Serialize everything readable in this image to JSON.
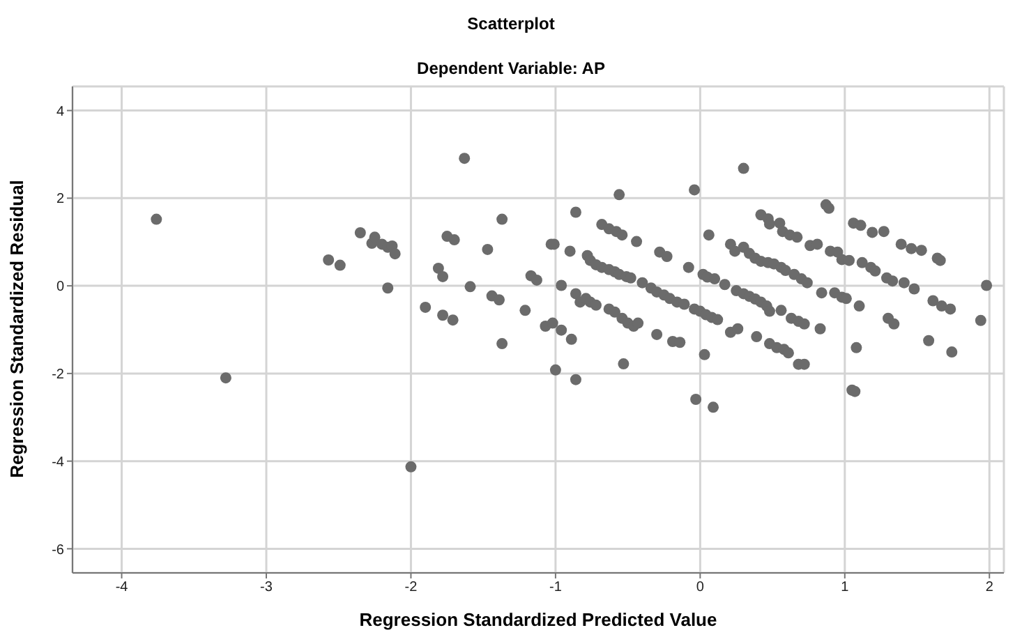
{
  "chart_data": {
    "type": "scatter",
    "title": "Scatterplot",
    "subtitle": "Dependent Variable: AP",
    "xlabel": "Regression Standardized Predicted Value",
    "ylabel": "Regression Standardized Residual",
    "xlim": [
      -4.34,
      2.1
    ],
    "ylim": [
      -6.55,
      4.55
    ],
    "xticks": [
      -4,
      -3,
      -2,
      -1,
      0,
      1,
      2
    ],
    "yticks": [
      -6,
      -4,
      -2,
      0,
      2,
      4
    ],
    "grid": true,
    "marker": "circle",
    "series": [
      {
        "color": "#6b6b6b",
        "x": [
          -3.76,
          -3.28,
          -2.57,
          -2.49,
          -2.35,
          -2.27,
          -2.25,
          -2.2,
          -2.16,
          -2.13,
          -2.11,
          -2.16,
          -2.0,
          -1.63,
          -1.75,
          -1.7,
          -1.81,
          -1.78,
          -1.9,
          -1.78,
          -1.71,
          -1.59,
          -1.47,
          -1.37,
          -1.44,
          -1.39,
          -1.37,
          -1.21,
          -1.17,
          -1.13,
          -1.03,
          -1.01,
          -1.07,
          -1.02,
          -0.96,
          -0.89,
          -0.96,
          -1.0,
          -0.86,
          -0.86,
          -0.9,
          -0.86,
          -0.83,
          -0.79,
          -0.76,
          -0.72,
          -0.78,
          -0.76,
          -0.72,
          -0.68,
          -0.63,
          -0.59,
          -0.56,
          -0.51,
          -0.48,
          -0.68,
          -0.63,
          -0.58,
          -0.54,
          -0.44,
          -0.56,
          -0.63,
          -0.59,
          -0.54,
          -0.5,
          -0.46,
          -0.43,
          -0.53,
          -0.4,
          -0.34,
          -0.3,
          -0.25,
          -0.21,
          -0.16,
          -0.11,
          -0.3,
          -0.19,
          -0.14,
          -0.28,
          -0.23,
          -0.08,
          -0.04,
          -0.03,
          0.09,
          0.03,
          -0.04,
          0.0,
          0.04,
          0.08,
          0.12,
          0.02,
          0.05,
          0.1,
          0.17,
          0.06,
          0.21,
          0.24,
          0.3,
          0.34,
          0.38,
          0.42,
          0.47,
          0.51,
          0.56,
          0.59,
          0.25,
          0.3,
          0.34,
          0.38,
          0.42,
          0.46,
          0.48,
          0.56,
          0.21,
          0.26,
          0.39,
          0.48,
          0.53,
          0.58,
          0.61,
          0.68,
          0.72,
          0.3,
          0.42,
          0.47,
          0.48,
          0.55,
          0.57,
          0.62,
          0.67,
          0.76,
          0.81,
          0.65,
          0.7,
          0.74,
          0.63,
          0.68,
          0.72,
          0.83,
          0.84,
          0.87,
          0.89,
          0.9,
          0.95,
          0.98,
          1.03,
          0.93,
          0.98,
          1.01,
          1.1,
          1.08,
          1.05,
          1.07,
          1.06,
          1.11,
          1.19,
          1.27,
          1.12,
          1.18,
          1.21,
          1.29,
          1.33,
          1.3,
          1.34,
          1.39,
          1.46,
          1.53,
          1.41,
          1.48,
          1.64,
          1.66,
          1.61,
          1.67,
          1.73,
          1.58,
          1.74,
          1.94,
          1.98
        ],
        "values": [
          1.52,
          -2.1,
          0.59,
          0.47,
          1.21,
          0.97,
          1.11,
          0.95,
          0.88,
          0.91,
          0.73,
          -0.05,
          -4.13,
          2.91,
          1.13,
          1.05,
          0.4,
          0.21,
          -0.49,
          -0.67,
          -0.78,
          -0.02,
          0.83,
          1.52,
          -0.23,
          -0.32,
          -1.32,
          -0.56,
          0.23,
          0.13,
          0.95,
          0.95,
          -0.92,
          -0.85,
          -1.01,
          -1.22,
          0.01,
          -1.92,
          -2.14,
          1.68,
          0.79,
          -0.18,
          -0.37,
          -0.29,
          -0.37,
          -0.44,
          0.69,
          0.58,
          0.48,
          0.42,
          0.37,
          0.32,
          0.26,
          0.21,
          0.18,
          1.4,
          1.3,
          1.24,
          1.16,
          1.01,
          2.08,
          -0.53,
          -0.6,
          -0.74,
          -0.85,
          -0.92,
          -0.85,
          -1.78,
          0.07,
          -0.05,
          -0.14,
          -0.21,
          -0.29,
          -0.37,
          -0.42,
          -1.11,
          -1.27,
          -1.29,
          0.77,
          0.67,
          0.42,
          2.19,
          -2.59,
          -2.77,
          -1.57,
          -0.53,
          -0.58,
          -0.66,
          -0.72,
          -0.77,
          0.26,
          0.2,
          0.16,
          0.03,
          1.16,
          0.95,
          0.79,
          0.88,
          0.74,
          0.63,
          0.56,
          0.53,
          0.5,
          0.42,
          0.35,
          -0.11,
          -0.18,
          -0.24,
          -0.3,
          -0.37,
          -0.46,
          -0.58,
          -0.56,
          -1.06,
          -0.98,
          -1.16,
          -1.32,
          -1.41,
          -1.45,
          -1.53,
          -1.79,
          -1.79,
          2.68,
          1.62,
          1.53,
          1.41,
          1.43,
          1.24,
          1.16,
          1.11,
          0.92,
          0.95,
          0.26,
          0.16,
          0.07,
          -0.74,
          -0.81,
          -0.87,
          -0.98,
          -0.16,
          1.85,
          1.77,
          0.79,
          0.77,
          0.6,
          0.58,
          -0.16,
          -0.26,
          -0.29,
          -0.46,
          -1.41,
          -2.38,
          -2.41,
          1.43,
          1.38,
          1.22,
          1.24,
          0.53,
          0.42,
          0.34,
          0.18,
          0.11,
          -0.74,
          -0.87,
          0.95,
          0.85,
          0.81,
          0.07,
          -0.07,
          0.63,
          0.58,
          -0.34,
          -0.46,
          -0.53,
          -1.25,
          -1.51,
          -0.79,
          0.01
        ]
      }
    ]
  }
}
